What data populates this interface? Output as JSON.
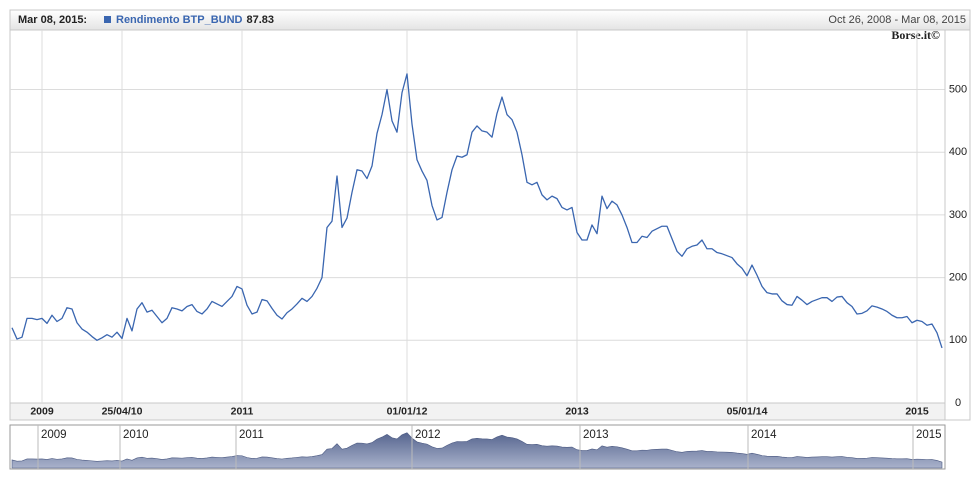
{
  "chart_data": {
    "type": "line",
    "date": "Mar 08, 2015:",
    "range": "Oct 26, 2008 - Mar 08, 2015",
    "watermark": "Borse.it©",
    "categories": [
      null,
      null,
      null,
      null,
      null,
      null,
      "2009",
      null,
      null,
      null,
      null,
      null,
      null,
      null,
      null,
      null,
      null,
      null,
      null,
      null,
      null,
      null,
      "25/04/10",
      null,
      null,
      null,
      null,
      null,
      null,
      null,
      null,
      null,
      null,
      null,
      null,
      null,
      null,
      null,
      null,
      null,
      null,
      null,
      null,
      null,
      null,
      null,
      "2011",
      null,
      null,
      null,
      null,
      null,
      null,
      null,
      null,
      null,
      null,
      null,
      null,
      null,
      null,
      null,
      null,
      null,
      null,
      null,
      null,
      null,
      null,
      null,
      null,
      null,
      null,
      null,
      null,
      null,
      null,
      null,
      null,
      "01/01/12",
      null,
      null,
      null,
      null,
      null,
      null,
      null,
      null,
      null,
      null,
      null,
      null,
      null,
      null,
      null,
      null,
      null,
      null,
      null,
      null,
      null,
      null,
      null,
      null,
      null,
      null,
      null,
      null,
      null,
      null,
      null,
      null,
      null,
      "2013",
      null,
      null,
      null,
      null,
      null,
      null,
      null,
      null,
      null,
      null,
      null,
      null,
      null,
      null,
      null,
      null,
      null,
      null,
      null,
      null,
      null,
      null,
      null,
      null,
      null,
      null,
      null,
      null,
      null,
      null,
      null,
      null,
      null,
      "05/01/14",
      null,
      null,
      null,
      null,
      null,
      null,
      null,
      null,
      null,
      null,
      null,
      null,
      null,
      null,
      null,
      null,
      null,
      null,
      null,
      null,
      null,
      null,
      null,
      null,
      null,
      null,
      null,
      null,
      null,
      null,
      null,
      null,
      null,
      "2015",
      null,
      null,
      null,
      null,
      null
    ],
    "series": [
      {
        "name": "Rendimento BTP_BUND",
        "color": "#3a66b0",
        "values": [
          120,
          102,
          105,
          135,
          135,
          133,
          135,
          127,
          140,
          130,
          135,
          152,
          150,
          128,
          118,
          113,
          106,
          100,
          104,
          109,
          105,
          113,
          103,
          135,
          115,
          150,
          160,
          145,
          148,
          138,
          128,
          135,
          152,
          150,
          147,
          154,
          157,
          146,
          142,
          150,
          162,
          158,
          154,
          162,
          170,
          186,
          182,
          156,
          142,
          145,
          165,
          163,
          151,
          140,
          134,
          144,
          150,
          158,
          167,
          162,
          170,
          183,
          200,
          280,
          290,
          362,
          280,
          295,
          336,
          372,
          370,
          358,
          378,
          430,
          460,
          500,
          450,
          432,
          495,
          525,
          445,
          388,
          370,
          355,
          315,
          292,
          296,
          336,
          372,
          394,
          392,
          396,
          432,
          442,
          434,
          432,
          424,
          462,
          488,
          460,
          452,
          432,
          396,
          352,
          348,
          352,
          332,
          324,
          330,
          326,
          312,
          308,
          312,
          272,
          260,
          260,
          284,
          270,
          330,
          310,
          322,
          316,
          300,
          280,
          256,
          256,
          266,
          264,
          274,
          278,
          282,
          282,
          262,
          242,
          234,
          246,
          250,
          252,
          260,
          246,
          246,
          240,
          238,
          235,
          232,
          222,
          215,
          203,
          220,
          204,
          186,
          176,
          174,
          174,
          163,
          157,
          156,
          170,
          164,
          157,
          162,
          165,
          168,
          168,
          162,
          169,
          170,
          160,
          154,
          142,
          143,
          147,
          155,
          153,
          150,
          146,
          140,
          136,
          136,
          138,
          128,
          132,
          130,
          124,
          126,
          112,
          87.83
        ]
      }
    ],
    "ylim": [
      0,
      595
    ],
    "yticks": [
      0,
      100,
      200,
      300,
      400,
      500
    ],
    "grid": true,
    "navigator_labels": [
      "2009",
      "2010",
      "2011",
      "2012",
      "2013",
      "2014",
      "2015"
    ]
  }
}
